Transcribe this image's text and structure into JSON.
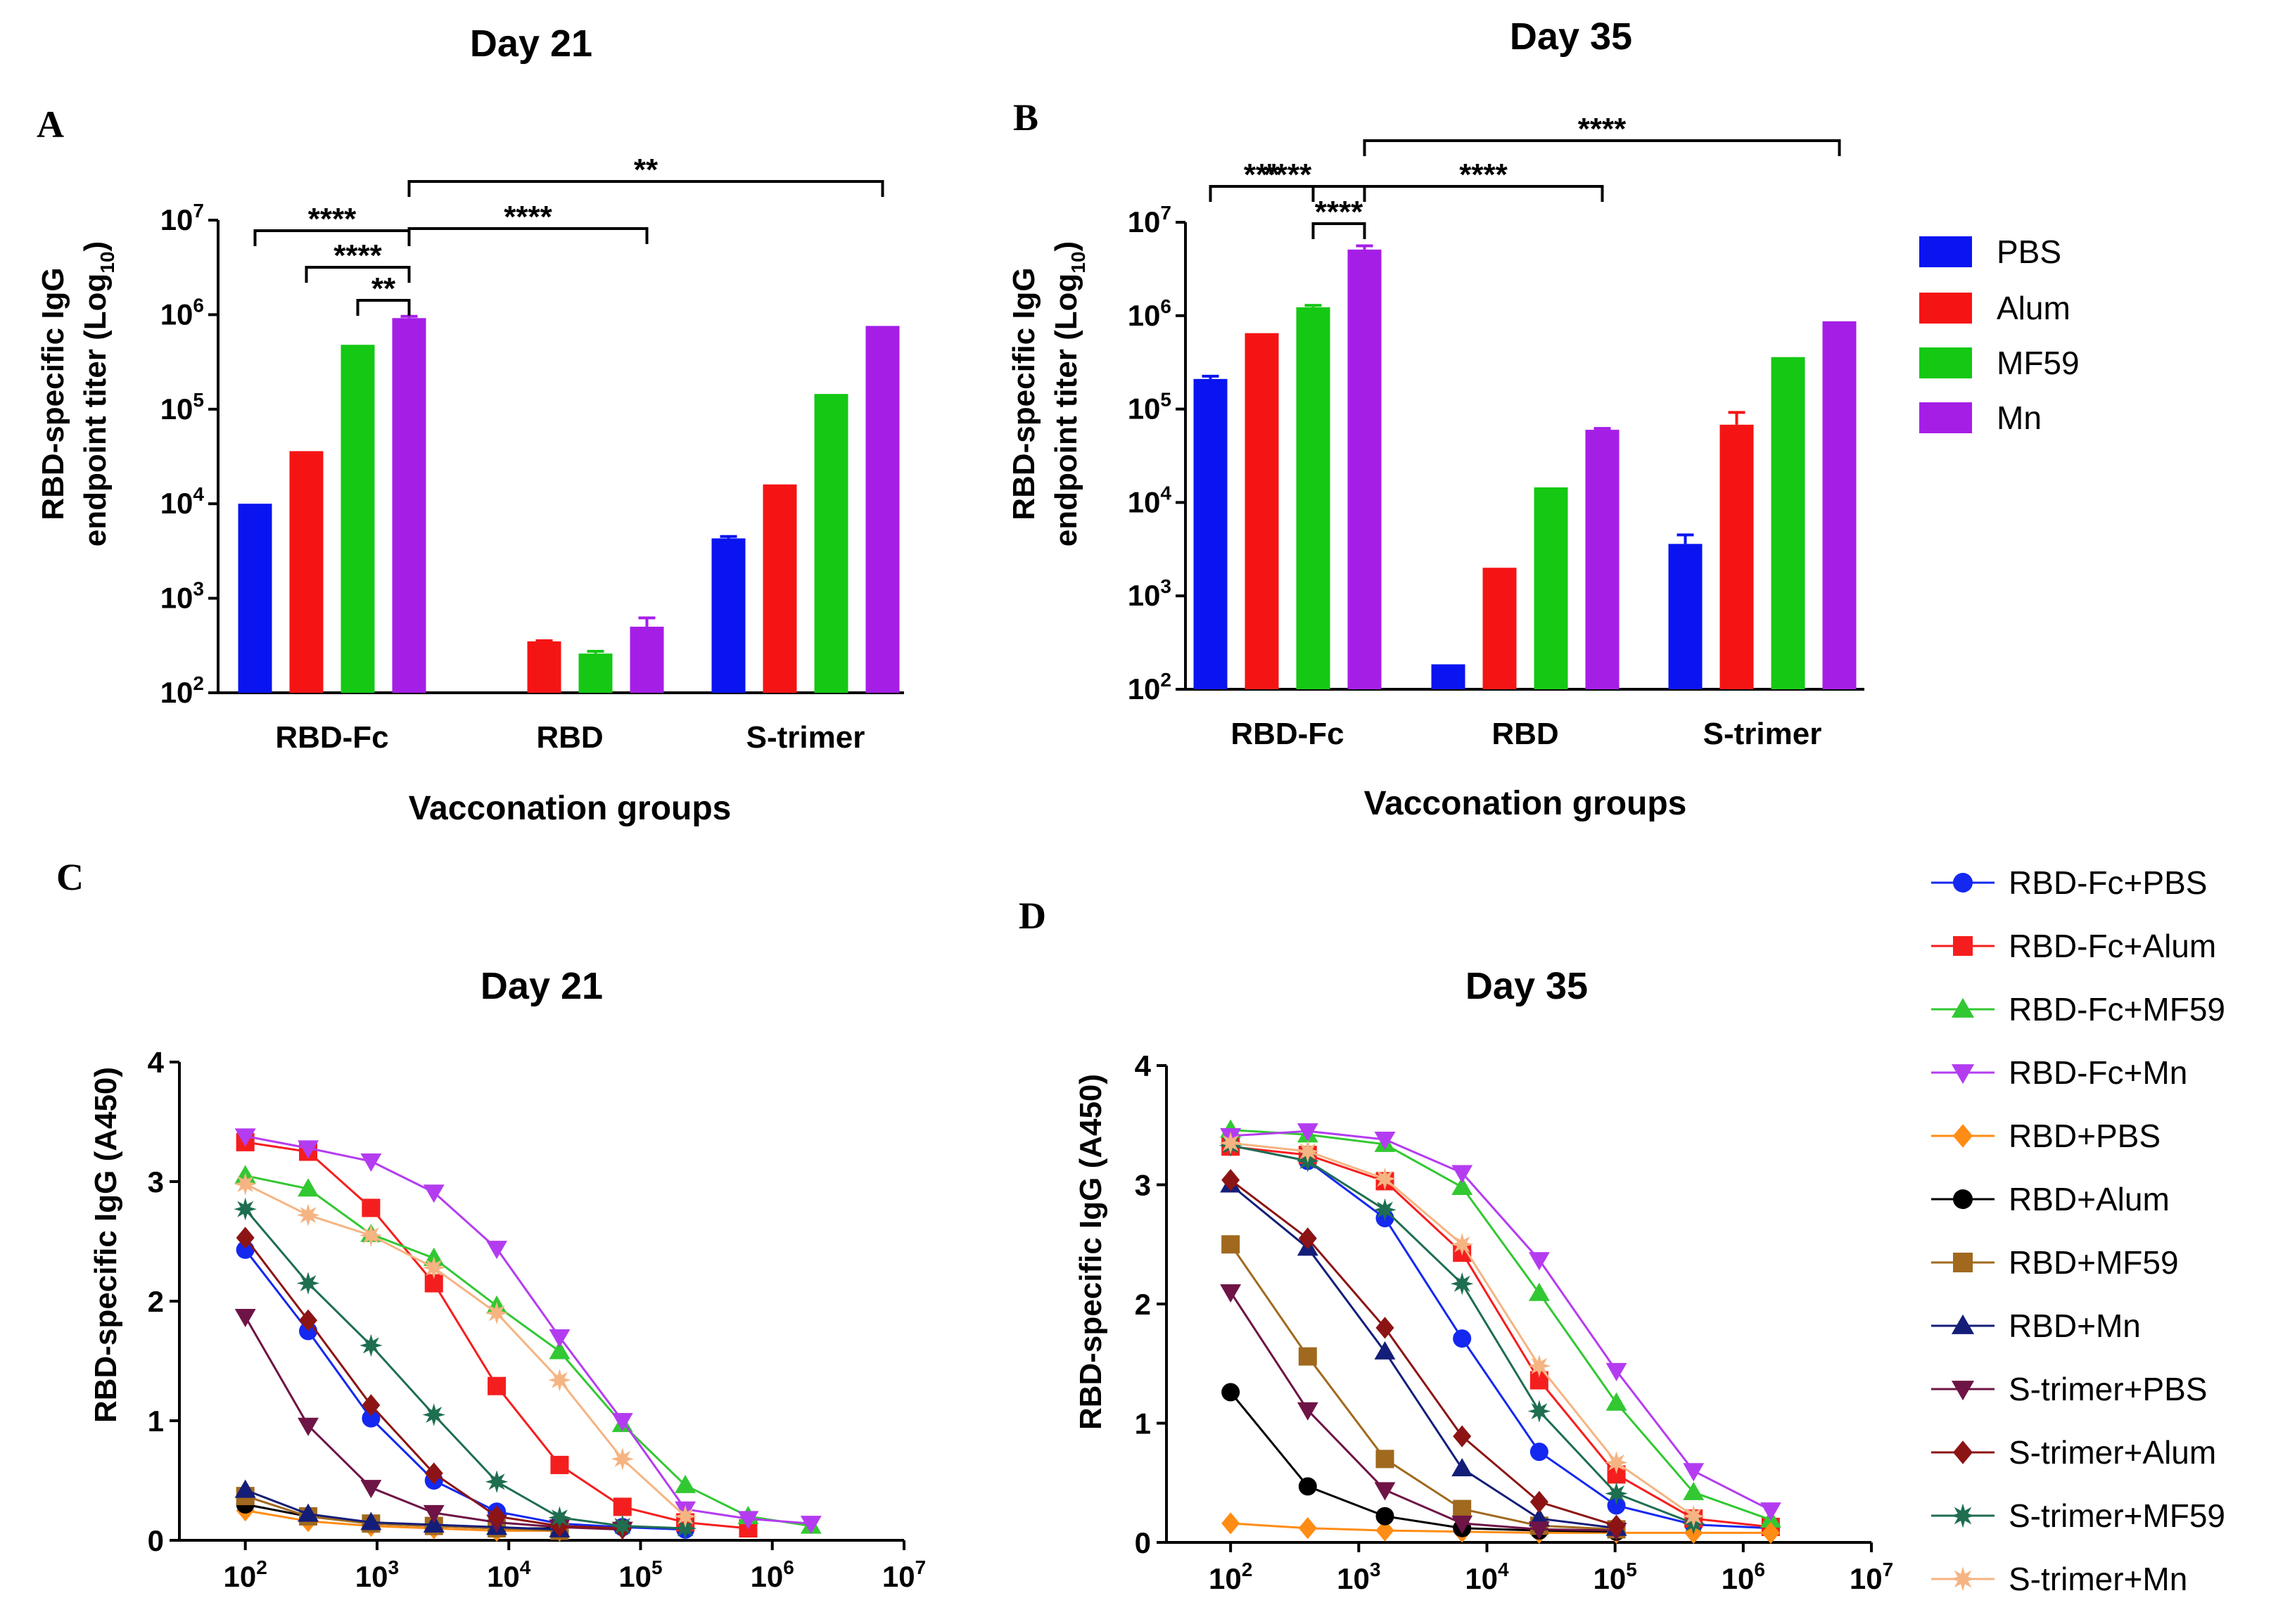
{
  "panels": {
    "A": {
      "label": "A",
      "title": "Day 21"
    },
    "B": {
      "label": "B",
      "title": "Day 35"
    },
    "C": {
      "label": "C",
      "title": "Day 21"
    },
    "D": {
      "label": "D",
      "title": "Day 35"
    }
  },
  "bar_legend": [
    {
      "name": "PBS",
      "color": "#0a14f0"
    },
    {
      "name": "Alum",
      "color": "#f51414"
    },
    {
      "name": "MF59",
      "color": "#14c814"
    },
    {
      "name": "Mn",
      "color": "#a51ee6"
    }
  ],
  "line_legend": [
    {
      "name": "RBD-Fc+PBS",
      "color": "#1428f0",
      "marker": "circle"
    },
    {
      "name": "RBD-Fc+Alum",
      "color": "#f51e1e",
      "marker": "square"
    },
    {
      "name": "RBD-Fc+MF59",
      "color": "#32c832",
      "marker": "triangle-up"
    },
    {
      "name": "RBD-Fc+Mn",
      "color": "#b43cf0",
      "marker": "triangle-down"
    },
    {
      "name": "RBD+PBS",
      "color": "#ff8c14",
      "marker": "diamond"
    },
    {
      "name": "RBD+Alum",
      "color": "#000000",
      "marker": "circle"
    },
    {
      "name": "RBD+MF59",
      "color": "#a0691e",
      "marker": "square"
    },
    {
      "name": "RBD+Mn",
      "color": "#141e78",
      "marker": "triangle-up"
    },
    {
      "name": "S-trimer+PBS",
      "color": "#6e1446",
      "marker": "triangle-down"
    },
    {
      "name": "S-trimer+Alum",
      "color": "#8c1414",
      "marker": "diamond"
    },
    {
      "name": "S-trimer+MF59",
      "color": "#1e6e50",
      "marker": "star"
    },
    {
      "name": "S-trimer+Mn",
      "color": "#f5b482",
      "marker": "star"
    }
  ],
  "chart_data": [
    {
      "id": "A",
      "type": "bar",
      "title": "Day 21",
      "xlabel": "Vacconation groups",
      "ylabel": "RBD-specific IgG endpoint titer (Log10)",
      "ylabel_line1": "RBD-specific IgG",
      "ylabel_line2_main": "endpoint titer (Log",
      "ylabel_line2_sub": "10",
      "ylabel_line2_end": ")",
      "yscale": "log",
      "ylim": [
        100,
        10000000
      ],
      "yticks": [
        {
          "base": "10",
          "exp": "2"
        },
        {
          "base": "10",
          "exp": "3"
        },
        {
          "base": "10",
          "exp": "4"
        },
        {
          "base": "10",
          "exp": "5"
        },
        {
          "base": "10",
          "exp": "6"
        },
        {
          "base": "10",
          "exp": "7"
        }
      ],
      "categories": [
        "RBD-Fc",
        "RBD",
        "S-trimer"
      ],
      "series": [
        {
          "name": "PBS",
          "values": [
            10000,
            null,
            4300
          ],
          "errors": [
            10000,
            null,
            4500
          ]
        },
        {
          "name": "Alum",
          "values": [
            36000,
            350,
            16000
          ],
          "errors": [
            36000,
            355,
            16000
          ]
        },
        {
          "name": "MF59",
          "values": [
            480000,
            260,
            145000
          ],
          "errors": [
            480000,
            275,
            145000
          ]
        },
        {
          "name": "Mn",
          "values": [
            920000,
            500,
            760000
          ],
          "errors": [
            960000,
            620,
            760000
          ]
        }
      ],
      "significance": [
        {
          "from": [
            0,
            0
          ],
          "to": [
            0,
            3
          ],
          "label": "****"
        },
        {
          "from": [
            0,
            1
          ],
          "to": [
            0,
            3
          ],
          "label": "****"
        },
        {
          "from": [
            0,
            2
          ],
          "to": [
            0,
            3
          ],
          "label": "**"
        },
        {
          "from": [
            0,
            3
          ],
          "to": [
            1,
            3
          ],
          "label": "****"
        },
        {
          "from": [
            0,
            3
          ],
          "to": [
            2,
            3
          ],
          "label": "**"
        }
      ]
    },
    {
      "id": "B",
      "type": "bar",
      "title": "Day 35",
      "xlabel": "Vacconation groups",
      "ylabel": "RBD-specific IgG endpoint titer (Log10)",
      "ylabel_line1": "RBD-specific IgG",
      "ylabel_line2_main": "endpoint titer (Log",
      "ylabel_line2_sub": "10",
      "ylabel_line2_end": ")",
      "yscale": "log",
      "ylim": [
        100,
        10000000
      ],
      "yticks": [
        {
          "base": "10",
          "exp": "2"
        },
        {
          "base": "10",
          "exp": "3"
        },
        {
          "base": "10",
          "exp": "4"
        },
        {
          "base": "10",
          "exp": "5"
        },
        {
          "base": "10",
          "exp": "6"
        },
        {
          "base": "10",
          "exp": "7"
        }
      ],
      "categories": [
        "RBD-Fc",
        "RBD",
        "S-trimer"
      ],
      "series": [
        {
          "name": "PBS",
          "values": [
            210000,
            185,
            3600
          ],
          "errors": [
            225000,
            185,
            4500
          ]
        },
        {
          "name": "Alum",
          "values": [
            650000,
            2000,
            68000
          ],
          "errors": [
            650000,
            2000,
            92000
          ]
        },
        {
          "name": "MF59",
          "values": [
            1230000,
            14500,
            360000
          ],
          "errors": [
            1290000,
            14500,
            360000
          ]
        },
        {
          "name": "Mn",
          "values": [
            5100000,
            60000,
            870000
          ],
          "errors": [
            5600000,
            62000,
            870000
          ]
        }
      ],
      "significance": [
        {
          "from": [
            0,
            0
          ],
          "to": [
            0,
            2
          ],
          "label": "***"
        },
        {
          "from": [
            0,
            0
          ],
          "to": [
            0,
            3
          ],
          "label": "****"
        },
        {
          "from": [
            0,
            2
          ],
          "to": [
            0,
            3
          ],
          "label": "****"
        },
        {
          "from": [
            0,
            3
          ],
          "to": [
            1,
            3
          ],
          "label": "****"
        },
        {
          "from": [
            0,
            3
          ],
          "to": [
            2,
            3
          ],
          "label": "****"
        }
      ]
    },
    {
      "id": "C",
      "type": "line",
      "title": "Day 21",
      "ylabel": "RBD-specific IgG (A450)",
      "xscale": "log",
      "xlim": [
        31.6,
        10000000
      ],
      "ylim": [
        0,
        4
      ],
      "xticks": [
        {
          "base": "10",
          "exp": "2"
        },
        {
          "base": "10",
          "exp": "3"
        },
        {
          "base": "10",
          "exp": "4"
        },
        {
          "base": "10",
          "exp": "5"
        },
        {
          "base": "10",
          "exp": "6"
        },
        {
          "base": "10",
          "exp": "7"
        }
      ],
      "yticks": [
        "0",
        "1",
        "2",
        "3",
        "4"
      ],
      "series": [
        {
          "name": "RBD-Fc+PBS",
          "x": [
            100,
            300,
            900,
            2700,
            8100,
            24300,
            72900,
            218700
          ],
          "y": [
            2.43,
            1.75,
            1.02,
            0.5,
            0.24,
            0.14,
            0.11,
            0.09
          ]
        },
        {
          "name": "RBD-Fc+Alum",
          "x": [
            100,
            300,
            900,
            2700,
            8100,
            24300,
            72900,
            218700,
            656100
          ],
          "y": [
            3.33,
            3.25,
            2.78,
            2.15,
            1.29,
            0.63,
            0.28,
            0.15,
            0.1
          ]
        },
        {
          "name": "RBD-Fc+MF59",
          "x": [
            100,
            300,
            900,
            2700,
            8100,
            24300,
            72900,
            218700,
            656100,
            1968300
          ],
          "y": [
            3.05,
            2.94,
            2.56,
            2.36,
            1.96,
            1.58,
            0.97,
            0.46,
            0.2,
            0.12
          ]
        },
        {
          "name": "RBD-Fc+Mn",
          "x": [
            100,
            300,
            900,
            2700,
            8100,
            24300,
            72900,
            218700,
            656100,
            1968300
          ],
          "y": [
            3.38,
            3.28,
            3.17,
            2.91,
            2.44,
            1.7,
            1.0,
            0.26,
            0.18,
            0.14
          ]
        },
        {
          "name": "RBD+PBS",
          "x": [
            100,
            300,
            900,
            2700,
            8100,
            24300
          ],
          "y": [
            0.25,
            0.16,
            0.12,
            0.1,
            0.08,
            0.08
          ]
        },
        {
          "name": "RBD+Alum",
          "x": [
            100,
            300,
            900,
            2700,
            8100,
            24300
          ],
          "y": [
            0.3,
            0.2,
            0.14,
            0.12,
            0.1,
            0.1
          ]
        },
        {
          "name": "RBD+MF59",
          "x": [
            100,
            300,
            900,
            2700,
            8100,
            24300
          ],
          "y": [
            0.37,
            0.2,
            0.14,
            0.12,
            0.1,
            0.08
          ]
        },
        {
          "name": "RBD+Mn",
          "x": [
            100,
            300,
            900,
            2700,
            8100,
            24300
          ],
          "y": [
            0.42,
            0.22,
            0.15,
            0.13,
            0.11,
            0.09
          ]
        },
        {
          "name": "S-trimer+PBS",
          "x": [
            100,
            300,
            900,
            2700,
            8100,
            24300,
            72900
          ],
          "y": [
            1.87,
            0.96,
            0.44,
            0.23,
            0.15,
            0.11,
            0.09
          ]
        },
        {
          "name": "S-trimer+Alum",
          "x": [
            100,
            300,
            900,
            2700,
            8100,
            24300,
            72900
          ],
          "y": [
            2.53,
            1.84,
            1.13,
            0.56,
            0.2,
            0.12,
            0.1
          ]
        },
        {
          "name": "S-trimer+MF59",
          "x": [
            100,
            300,
            900,
            2700,
            8100,
            24300,
            72900,
            218700
          ],
          "y": [
            2.77,
            2.15,
            1.63,
            1.05,
            0.49,
            0.19,
            0.12,
            0.1
          ]
        },
        {
          "name": "S-trimer+Mn",
          "x": [
            100,
            300,
            900,
            2700,
            8100,
            24300,
            72900,
            218700
          ],
          "y": [
            2.98,
            2.72,
            2.55,
            2.28,
            1.9,
            1.34,
            0.68,
            0.2
          ]
        }
      ]
    },
    {
      "id": "D",
      "type": "line",
      "title": "Day 35",
      "ylabel": "RBD-specific IgG (A450)",
      "xscale": "log",
      "xlim": [
        31.6,
        10000000
      ],
      "ylim": [
        0,
        4
      ],
      "xticks": [
        {
          "base": "10",
          "exp": "2"
        },
        {
          "base": "10",
          "exp": "3"
        },
        {
          "base": "10",
          "exp": "4"
        },
        {
          "base": "10",
          "exp": "5"
        },
        {
          "base": "10",
          "exp": "6"
        },
        {
          "base": "10",
          "exp": "7"
        }
      ],
      "yticks": [
        "0",
        "1",
        "2",
        "3",
        "4"
      ],
      "series": [
        {
          "name": "RBD-Fc+PBS",
          "x": [
            100,
            400,
            1600,
            6400,
            25600,
            102400,
            409600,
            1638400
          ],
          "y": [
            3.33,
            3.2,
            2.72,
            1.71,
            0.76,
            0.31,
            0.15,
            0.12
          ]
        },
        {
          "name": "RBD-Fc+Alum",
          "x": [
            100,
            400,
            1600,
            6400,
            25600,
            102400,
            409600,
            1638400
          ],
          "y": [
            3.32,
            3.25,
            3.03,
            2.43,
            1.36,
            0.57,
            0.2,
            0.13
          ]
        },
        {
          "name": "RBD-Fc+MF59",
          "x": [
            100,
            400,
            1600,
            6400,
            25600,
            102400,
            409600,
            1638400
          ],
          "y": [
            3.46,
            3.42,
            3.34,
            2.98,
            2.09,
            1.17,
            0.42,
            0.19
          ]
        },
        {
          "name": "RBD-Fc+Mn",
          "x": [
            100,
            400,
            1600,
            6400,
            25600,
            102400,
            409600,
            1638400
          ],
          "y": [
            3.41,
            3.45,
            3.38,
            3.1,
            2.37,
            1.44,
            0.6,
            0.27
          ]
        },
        {
          "name": "RBD+PBS",
          "x": [
            100,
            400,
            1600,
            6400,
            25600,
            102400,
            409600,
            1638400
          ],
          "y": [
            0.16,
            0.12,
            0.1,
            0.09,
            0.08,
            0.08,
            0.08,
            0.08
          ]
        },
        {
          "name": "RBD+Alum",
          "x": [
            100,
            400,
            1600,
            6400,
            25600,
            102400
          ],
          "y": [
            1.26,
            0.47,
            0.22,
            0.12,
            0.1,
            0.09
          ]
        },
        {
          "name": "RBD+MF59",
          "x": [
            100,
            400,
            1600,
            6400,
            25600,
            102400
          ],
          "y": [
            2.5,
            1.56,
            0.7,
            0.28,
            0.14,
            0.11
          ]
        },
        {
          "name": "RBD+Mn",
          "x": [
            100,
            400,
            1600,
            6400,
            25600,
            102400
          ],
          "y": [
            3.0,
            2.47,
            1.6,
            0.62,
            0.2,
            0.12
          ]
        },
        {
          "name": "S-trimer+PBS",
          "x": [
            100,
            400,
            1600,
            6400,
            25600,
            102400
          ],
          "y": [
            2.1,
            1.11,
            0.44,
            0.16,
            0.11,
            0.1
          ]
        },
        {
          "name": "S-trimer+Alum",
          "x": [
            100,
            400,
            1600,
            6400,
            25600,
            102400
          ],
          "y": [
            3.04,
            2.55,
            1.8,
            0.89,
            0.34,
            0.14
          ]
        },
        {
          "name": "S-trimer+MF59",
          "x": [
            100,
            400,
            1600,
            6400,
            25600,
            102400,
            409600
          ],
          "y": [
            3.33,
            3.2,
            2.79,
            2.17,
            1.1,
            0.41,
            0.16
          ]
        },
        {
          "name": "S-trimer+Mn",
          "x": [
            100,
            400,
            1600,
            6400,
            25600,
            102400,
            409600
          ],
          "y": [
            3.35,
            3.28,
            3.05,
            2.5,
            1.48,
            0.67,
            0.22
          ]
        }
      ]
    }
  ]
}
